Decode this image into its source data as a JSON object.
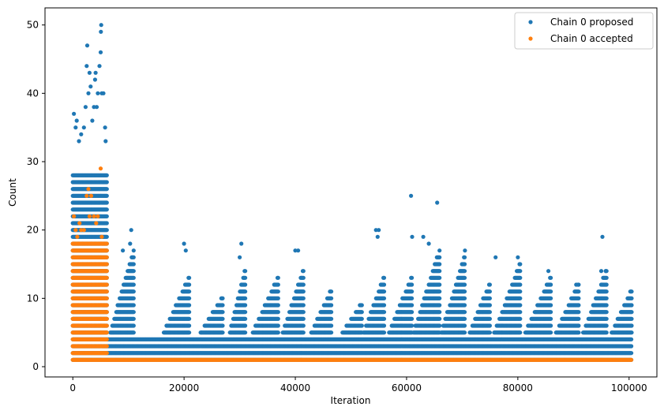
{
  "chart_data": {
    "type": "scatter",
    "title": "",
    "xlabel": "Iteration",
    "ylabel": "Count",
    "xlim": [
      -5000,
      105000
    ],
    "ylim": [
      -1.5,
      52.5
    ],
    "xticks": [
      0,
      20000,
      40000,
      60000,
      80000,
      100000
    ],
    "xtick_labels": [
      "0",
      "20000",
      "40000",
      "60000",
      "80000",
      "100000"
    ],
    "yticks": [
      0,
      10,
      20,
      30,
      40,
      50
    ],
    "ytick_labels": [
      "0",
      "10",
      "20",
      "30",
      "40",
      "50"
    ],
    "grid": false,
    "legend": {
      "position": "top-right",
      "entries": [
        "Chain 0 proposed",
        "Chain 0 accepted"
      ]
    },
    "series": [
      {
        "name": "Chain 0 proposed",
        "color": "#1f77b4",
        "band_note_free": true,
        "bands": [
          {
            "x_start": 0,
            "x_end": 6200,
            "y_min": 1,
            "y_max": 28
          },
          {
            "x_start": 6200,
            "x_end": 100500,
            "y_min": 1,
            "y_max": 4
          }
        ],
        "bursts": [
          {
            "x_start": 6500,
            "x_end": 11000,
            "y_max": 17
          },
          {
            "x_start": 16000,
            "x_end": 21000,
            "y_max": 13
          },
          {
            "x_start": 22500,
            "x_end": 27000,
            "y_max": 10
          },
          {
            "x_start": 28000,
            "x_end": 31000,
            "y_max": 14
          },
          {
            "x_start": 32000,
            "x_end": 37000,
            "y_max": 13
          },
          {
            "x_start": 37500,
            "x_end": 41500,
            "y_max": 14
          },
          {
            "x_start": 42500,
            "x_end": 46500,
            "y_max": 11
          },
          {
            "x_start": 48000,
            "x_end": 52000,
            "y_max": 9
          },
          {
            "x_start": 52000,
            "x_end": 56000,
            "y_max": 13
          },
          {
            "x_start": 56500,
            "x_end": 61000,
            "y_max": 13
          },
          {
            "x_start": 61000,
            "x_end": 66000,
            "y_max": 17
          },
          {
            "x_start": 66000,
            "x_end": 70500,
            "y_max": 16
          },
          {
            "x_start": 71000,
            "x_end": 75000,
            "y_max": 12
          },
          {
            "x_start": 75500,
            "x_end": 80500,
            "y_max": 15
          },
          {
            "x_start": 81000,
            "x_end": 86000,
            "y_max": 13
          },
          {
            "x_start": 86500,
            "x_end": 91000,
            "y_max": 12
          },
          {
            "x_start": 91500,
            "x_end": 96000,
            "y_max": 14
          },
          {
            "x_start": 96500,
            "x_end": 100500,
            "y_max": 11
          }
        ],
        "outliers": [
          {
            "x": 200,
            "y": 37
          },
          {
            "x": 500,
            "y": 35
          },
          {
            "x": 700,
            "y": 36
          },
          {
            "x": 1100,
            "y": 33
          },
          {
            "x": 1500,
            "y": 34
          },
          {
            "x": 2000,
            "y": 35
          },
          {
            "x": 2300,
            "y": 38
          },
          {
            "x": 2500,
            "y": 44
          },
          {
            "x": 2600,
            "y": 47
          },
          {
            "x": 2800,
            "y": 40
          },
          {
            "x": 3000,
            "y": 43
          },
          {
            "x": 3200,
            "y": 41
          },
          {
            "x": 3500,
            "y": 36
          },
          {
            "x": 3800,
            "y": 38
          },
          {
            "x": 4000,
            "y": 42
          },
          {
            "x": 4100,
            "y": 43
          },
          {
            "x": 4300,
            "y": 38
          },
          {
            "x": 4500,
            "y": 40
          },
          {
            "x": 4800,
            "y": 44
          },
          {
            "x": 5000,
            "y": 46
          },
          {
            "x": 5050,
            "y": 49
          },
          {
            "x": 5100,
            "y": 50
          },
          {
            "x": 5200,
            "y": 40
          },
          {
            "x": 5500,
            "y": 40
          },
          {
            "x": 5800,
            "y": 35
          },
          {
            "x": 5900,
            "y": 33
          },
          {
            "x": 9000,
            "y": 17
          },
          {
            "x": 10500,
            "y": 20
          },
          {
            "x": 10300,
            "y": 18
          },
          {
            "x": 20000,
            "y": 18
          },
          {
            "x": 20300,
            "y": 17
          },
          {
            "x": 30300,
            "y": 18
          },
          {
            "x": 30000,
            "y": 16
          },
          {
            "x": 40000,
            "y": 17
          },
          {
            "x": 40500,
            "y": 17
          },
          {
            "x": 54500,
            "y": 20
          },
          {
            "x": 55000,
            "y": 20
          },
          {
            "x": 54800,
            "y": 19
          },
          {
            "x": 60800,
            "y": 25
          },
          {
            "x": 61000,
            "y": 19
          },
          {
            "x": 63000,
            "y": 19
          },
          {
            "x": 64000,
            "y": 18
          },
          {
            "x": 65500,
            "y": 24
          },
          {
            "x": 70500,
            "y": 17
          },
          {
            "x": 76000,
            "y": 16
          },
          {
            "x": 80000,
            "y": 16
          },
          {
            "x": 85500,
            "y": 14
          },
          {
            "x": 90500,
            "y": 12
          },
          {
            "x": 95200,
            "y": 19
          },
          {
            "x": 95000,
            "y": 14
          },
          {
            "x": 95800,
            "y": 14
          }
        ]
      },
      {
        "name": "Chain 0 accepted",
        "color": "#ff7f0e",
        "bands": [
          {
            "x_start": 0,
            "x_end": 6200,
            "y_min": 1,
            "y_max": 18
          },
          {
            "x_start": 6200,
            "x_end": 100500,
            "y_min": 1,
            "y_max": 1
          }
        ],
        "outliers": [
          {
            "x": 200,
            "y": 22
          },
          {
            "x": 500,
            "y": 20
          },
          {
            "x": 1200,
            "y": 21
          },
          {
            "x": 800,
            "y": 19
          },
          {
            "x": 2500,
            "y": 25
          },
          {
            "x": 2800,
            "y": 26
          },
          {
            "x": 3000,
            "y": 22
          },
          {
            "x": 3300,
            "y": 25
          },
          {
            "x": 3800,
            "y": 22
          },
          {
            "x": 4200,
            "y": 21
          },
          {
            "x": 4500,
            "y": 22
          },
          {
            "x": 5000,
            "y": 29
          },
          {
            "x": 2000,
            "y": 20
          },
          {
            "x": 5200,
            "y": 19
          },
          {
            "x": 1500,
            "y": 20
          }
        ]
      }
    ]
  }
}
